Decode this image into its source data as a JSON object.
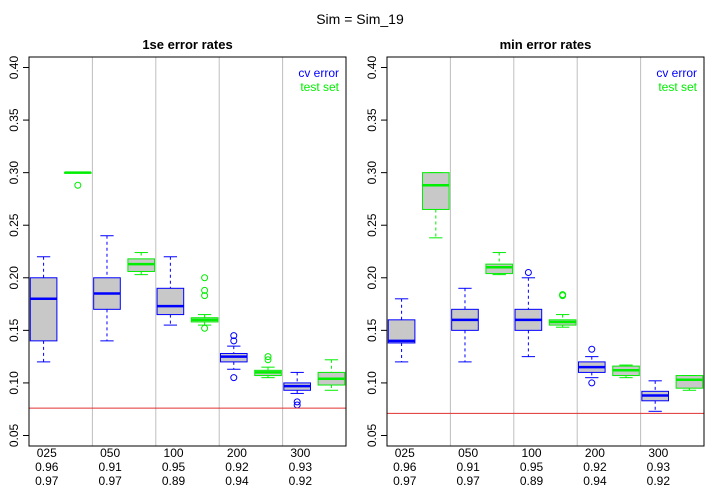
{
  "figure_title": "Sim = Sim_19",
  "colors": {
    "cv": "#0000ff",
    "test": "#00ee00",
    "box_fill": "#c8c8c8",
    "reference": "#e03030",
    "vgrid": "#bebebe"
  },
  "chart_data": [
    {
      "type": "boxplot",
      "title": "1se error rates",
      "ylim": [
        0.04,
        0.41
      ],
      "yticks": [
        0.05,
        0.1,
        0.15,
        0.2,
        0.25,
        0.3,
        0.35,
        0.4
      ],
      "ytick_labels": [
        "0.05",
        "0.10",
        "0.15",
        "0.20",
        "0.25",
        "0.30",
        "0.35",
        "0.40"
      ],
      "reference_line": 0.076,
      "legend": {
        "position": "top-right",
        "entries": [
          {
            "label": "cv error",
            "series": "cv"
          },
          {
            "label": "test set",
            "series": "test"
          }
        ]
      },
      "categories": [
        "025",
        "050",
        "100",
        "200",
        "300"
      ],
      "category_labels": [
        [
          "025",
          "0.96",
          "0.97"
        ],
        [
          "050",
          "0.91",
          "0.97"
        ],
        [
          "100",
          "0.95",
          "0.89"
        ],
        [
          "200",
          "0.92",
          "0.94"
        ],
        [
          "300",
          "0.93",
          "0.92"
        ]
      ],
      "series": [
        {
          "key": "cv",
          "boxes": [
            {
              "whislo": 0.12,
              "q1": 0.14,
              "med": 0.18,
              "q3": 0.2,
              "whishi": 0.22,
              "fliers": []
            },
            {
              "whislo": 0.14,
              "q1": 0.17,
              "med": 0.185,
              "q3": 0.2,
              "whishi": 0.24,
              "fliers": []
            },
            {
              "whislo": 0.155,
              "q1": 0.165,
              "med": 0.173,
              "q3": 0.19,
              "whishi": 0.22,
              "fliers": []
            },
            {
              "whislo": 0.113,
              "q1": 0.12,
              "med": 0.125,
              "q3": 0.128,
              "whishi": 0.135,
              "fliers": [
                0.105,
                0.14,
                0.145
              ]
            },
            {
              "whislo": 0.09,
              "q1": 0.093,
              "med": 0.097,
              "q3": 0.1,
              "whishi": 0.11,
              "fliers": [
                0.079,
                0.082
              ]
            }
          ]
        },
        {
          "key": "test",
          "boxes": [
            {
              "whislo": 0.3,
              "q1": 0.3,
              "med": 0.3,
              "q3": 0.3,
              "whishi": 0.3,
              "fliers": [
                0.288
              ]
            },
            {
              "whislo": 0.203,
              "q1": 0.206,
              "med": 0.213,
              "q3": 0.218,
              "whishi": 0.224,
              "fliers": []
            },
            {
              "whislo": 0.155,
              "q1": 0.158,
              "med": 0.16,
              "q3": 0.162,
              "whishi": 0.165,
              "fliers": [
                0.152,
                0.183,
                0.188,
                0.2
              ]
            },
            {
              "whislo": 0.105,
              "q1": 0.107,
              "med": 0.11,
              "q3": 0.112,
              "whishi": 0.115,
              "fliers": [
                0.122,
                0.125
              ]
            },
            {
              "whislo": 0.093,
              "q1": 0.098,
              "med": 0.104,
              "q3": 0.11,
              "whishi": 0.122,
              "fliers": []
            }
          ]
        }
      ]
    },
    {
      "type": "boxplot",
      "title": "min error rates",
      "ylim": [
        0.04,
        0.41
      ],
      "yticks": [
        0.05,
        0.1,
        0.15,
        0.2,
        0.25,
        0.3,
        0.35,
        0.4
      ],
      "ytick_labels": [
        "0.05",
        "0.10",
        "0.15",
        "0.20",
        "0.25",
        "0.30",
        "0.35",
        "0.40"
      ],
      "reference_line": 0.071,
      "legend": {
        "position": "top-right",
        "entries": [
          {
            "label": "cv error",
            "series": "cv"
          },
          {
            "label": "test set",
            "series": "test"
          }
        ]
      },
      "categories": [
        "025",
        "050",
        "100",
        "200",
        "300"
      ],
      "category_labels": [
        [
          "025",
          "0.96",
          "0.97"
        ],
        [
          "050",
          "0.91",
          "0.97"
        ],
        [
          "100",
          "0.95",
          "0.89"
        ],
        [
          "200",
          "0.92",
          "0.94"
        ],
        [
          "300",
          "0.93",
          "0.92"
        ]
      ],
      "series": [
        {
          "key": "cv",
          "boxes": [
            {
              "whislo": 0.12,
              "q1": 0.138,
              "med": 0.14,
              "q3": 0.16,
              "whishi": 0.18,
              "fliers": []
            },
            {
              "whislo": 0.12,
              "q1": 0.15,
              "med": 0.16,
              "q3": 0.17,
              "whishi": 0.19,
              "fliers": []
            },
            {
              "whislo": 0.125,
              "q1": 0.15,
              "med": 0.16,
              "q3": 0.17,
              "whishi": 0.2,
              "fliers": [
                0.205
              ]
            },
            {
              "whislo": 0.105,
              "q1": 0.11,
              "med": 0.115,
              "q3": 0.12,
              "whishi": 0.125,
              "fliers": [
                0.1,
                0.132
              ]
            },
            {
              "whislo": 0.073,
              "q1": 0.083,
              "med": 0.088,
              "q3": 0.092,
              "whishi": 0.102,
              "fliers": []
            }
          ]
        },
        {
          "key": "test",
          "boxes": [
            {
              "whislo": 0.238,
              "q1": 0.265,
              "med": 0.288,
              "q3": 0.3,
              "whishi": 0.3,
              "fliers": []
            },
            {
              "whislo": 0.203,
              "q1": 0.204,
              "med": 0.21,
              "q3": 0.213,
              "whishi": 0.224,
              "fliers": []
            },
            {
              "whislo": 0.153,
              "q1": 0.155,
              "med": 0.158,
              "q3": 0.16,
              "whishi": 0.165,
              "fliers": [
                0.183,
                0.184
              ]
            },
            {
              "whislo": 0.105,
              "q1": 0.107,
              "med": 0.112,
              "q3": 0.116,
              "whishi": 0.117,
              "fliers": []
            },
            {
              "whislo": 0.093,
              "q1": 0.095,
              "med": 0.103,
              "q3": 0.107,
              "whishi": 0.107,
              "fliers": []
            }
          ]
        }
      ]
    }
  ]
}
